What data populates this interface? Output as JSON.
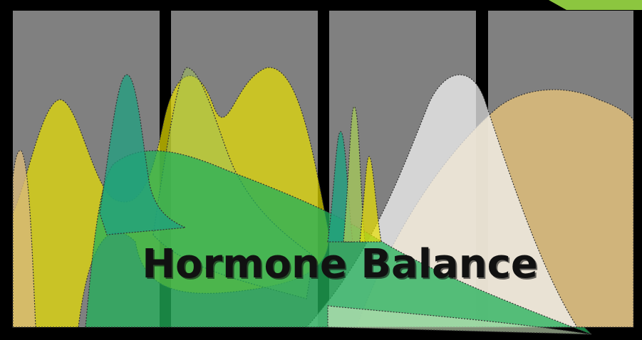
{
  "title": "Hormone Balance"
}
